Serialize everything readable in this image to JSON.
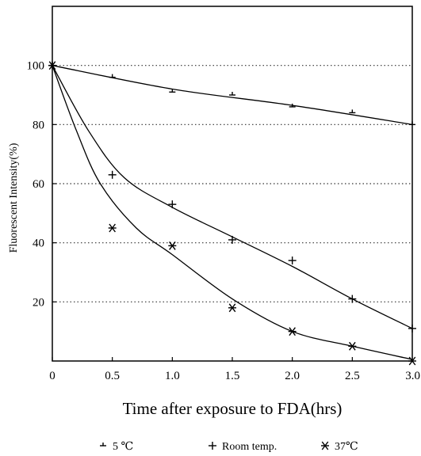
{
  "chart_data": {
    "type": "scatter",
    "title": "",
    "xlabel": "Time after exposure to FDA(hrs)",
    "ylabel": "Fluorescent Intensity(%)",
    "xlim": [
      0,
      3.0
    ],
    "ylim": [
      0,
      120
    ],
    "x_ticks": [
      "0",
      "0.5",
      "1.0",
      "1.5",
      "2.0",
      "2.5",
      "3.0"
    ],
    "y_ticks": [
      "20",
      "40",
      "60",
      "80",
      "100"
    ],
    "grid": "horizontal dotted",
    "series": [
      {
        "name": "5 ℃",
        "marker": "tick",
        "x": [
          0,
          0.5,
          1.0,
          1.5,
          2.0,
          2.5,
          3.0
        ],
        "y": [
          100,
          96,
          91,
          90,
          86,
          84,
          80
        ],
        "curve": [
          [
            0,
            100
          ],
          [
            1.0,
            92
          ],
          [
            2.0,
            86.5
          ],
          [
            3.0,
            80
          ]
        ]
      },
      {
        "name": "Room temp.",
        "marker": "plus",
        "x": [
          0,
          0.5,
          1.0,
          1.5,
          2.0,
          2.5,
          3.0
        ],
        "y": [
          100,
          63,
          53,
          41,
          34,
          21,
          11
        ],
        "curve": [
          [
            0,
            100
          ],
          [
            0.3,
            78
          ],
          [
            0.6,
            62
          ],
          [
            1.0,
            52
          ],
          [
            1.5,
            42
          ],
          [
            2.0,
            32
          ],
          [
            2.5,
            21
          ],
          [
            3.0,
            11
          ]
        ]
      },
      {
        "name": "37℃",
        "marker": "asterisk",
        "x": [
          0,
          0.5,
          1.0,
          1.5,
          2.0,
          2.5,
          3.0
        ],
        "y": [
          100,
          45,
          39,
          18,
          10,
          5,
          0
        ],
        "curve": [
          [
            0,
            100
          ],
          [
            0.2,
            78
          ],
          [
            0.4,
            60
          ],
          [
            0.7,
            45
          ],
          [
            1.0,
            36
          ],
          [
            1.5,
            21
          ],
          [
            2.0,
            10
          ],
          [
            2.5,
            5
          ],
          [
            3.0,
            0.5
          ]
        ]
      }
    ],
    "legend": "bottom"
  }
}
